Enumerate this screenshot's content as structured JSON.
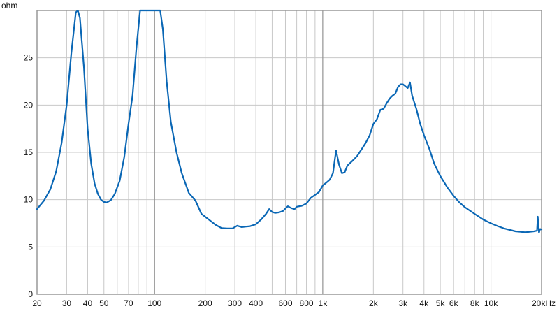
{
  "chart_data": {
    "type": "line",
    "xscale": "log",
    "xlim": [
      20,
      20000
    ],
    "ylim": [
      0,
      30
    ],
    "grid": true,
    "y_unit": "ohm",
    "y_ticks": [
      {
        "value": 0,
        "label": "0"
      },
      {
        "value": 5,
        "label": "5"
      },
      {
        "value": 10,
        "label": "10"
      },
      {
        "value": 15,
        "label": "15"
      },
      {
        "value": 20,
        "label": "20"
      },
      {
        "value": 25,
        "label": "25"
      }
    ],
    "x_ticks": [
      {
        "value": 20,
        "label": "20"
      },
      {
        "value": 30,
        "label": "30"
      },
      {
        "value": 40,
        "label": "40"
      },
      {
        "value": 50,
        "label": "50"
      },
      {
        "value": 70,
        "label": "70"
      },
      {
        "value": 100,
        "label": "100"
      },
      {
        "value": 200,
        "label": "200"
      },
      {
        "value": 300,
        "label": "300"
      },
      {
        "value": 400,
        "label": "400"
      },
      {
        "value": 600,
        "label": "600"
      },
      {
        "value": 800,
        "label": "800"
      },
      {
        "value": 1000,
        "label": "1k"
      },
      {
        "value": 2000,
        "label": "2k"
      },
      {
        "value": 3000,
        "label": "3k"
      },
      {
        "value": 4000,
        "label": "4k"
      },
      {
        "value": 5000,
        "label": "5k"
      },
      {
        "value": 6000,
        "label": "6k"
      },
      {
        "value": 8000,
        "label": "8k"
      },
      {
        "value": 10000,
        "label": "10k"
      },
      {
        "value": 20000,
        "label": "20kHz"
      }
    ],
    "minor_grid": [
      20,
      30,
      40,
      50,
      60,
      70,
      80,
      90,
      100,
      200,
      300,
      400,
      500,
      600,
      700,
      800,
      900,
      1000,
      2000,
      3000,
      4000,
      5000,
      6000,
      7000,
      8000,
      9000,
      10000,
      20000
    ],
    "major_grid": [
      100,
      1000,
      10000
    ],
    "colors": {
      "line": "#0a67b5",
      "grid": "#c8c8c8",
      "major_grid": "#888888",
      "frame": "#999999"
    },
    "series": [
      {
        "x": [
          20,
          22,
          24,
          26,
          28,
          30,
          32,
          34,
          35,
          36,
          38,
          40,
          42,
          44,
          46,
          48,
          50,
          52,
          55,
          58,
          62,
          66,
          70,
          74,
          78,
          82,
          85,
          88,
          92,
          96,
          100,
          104,
          108,
          112,
          118,
          125,
          135,
          145,
          160,
          175,
          190,
          210,
          230,
          250,
          270,
          290,
          310,
          330,
          350,
          370,
          400,
          430,
          460,
          480,
          500,
          520,
          550,
          580,
          620,
          650,
          680,
          700,
          750,
          800,
          850,
          900,
          950,
          1000,
          1050,
          1100,
          1150,
          1200,
          1250,
          1300,
          1350,
          1400,
          1500,
          1600,
          1700,
          1800,
          1900,
          2000,
          2100,
          2200,
          2300,
          2400,
          2500,
          2600,
          2700,
          2800,
          2900,
          3000,
          3100,
          3200,
          3300,
          3400,
          3600,
          3800,
          4000,
          4300,
          4600,
          5000,
          5500,
          6000,
          6500,
          7000,
          8000,
          9000,
          10000,
          11000,
          12000,
          13000,
          14000,
          15000,
          16000,
          17000,
          18000,
          18800,
          19000,
          19300,
          19600,
          20000
        ],
        "y": [
          9.0,
          9.9,
          11.1,
          13.0,
          16.0,
          20.0,
          25.5,
          29.8,
          30.0,
          29.2,
          24.0,
          17.5,
          13.8,
          11.7,
          10.6,
          10.0,
          9.75,
          9.7,
          9.95,
          10.6,
          12.0,
          14.5,
          18.0,
          21.0,
          26.0,
          30.0,
          30.0,
          30.0,
          30.0,
          30.0,
          30.0,
          30.0,
          30.0,
          28.0,
          22.5,
          18.2,
          15.0,
          12.8,
          10.7,
          9.9,
          8.5,
          7.9,
          7.35,
          7.0,
          6.95,
          6.95,
          7.25,
          7.1,
          7.15,
          7.2,
          7.4,
          7.9,
          8.5,
          9.0,
          8.7,
          8.6,
          8.65,
          8.8,
          9.3,
          9.1,
          9.0,
          9.25,
          9.35,
          9.6,
          10.2,
          10.5,
          10.8,
          11.5,
          11.8,
          12.1,
          12.8,
          15.2,
          13.7,
          12.8,
          12.9,
          13.6,
          14.1,
          14.6,
          15.3,
          16.0,
          16.8,
          18.0,
          18.5,
          19.5,
          19.6,
          20.2,
          20.7,
          21.0,
          21.2,
          21.9,
          22.2,
          22.2,
          22.0,
          21.8,
          22.4,
          21.0,
          19.6,
          18.0,
          16.8,
          15.4,
          13.8,
          12.5,
          11.3,
          10.4,
          9.7,
          9.2,
          8.5,
          7.9,
          7.5,
          7.2,
          6.95,
          6.8,
          6.65,
          6.6,
          6.55,
          6.6,
          6.65,
          6.72,
          8.2,
          6.5,
          6.9,
          6.85
        ]
      }
    ]
  }
}
